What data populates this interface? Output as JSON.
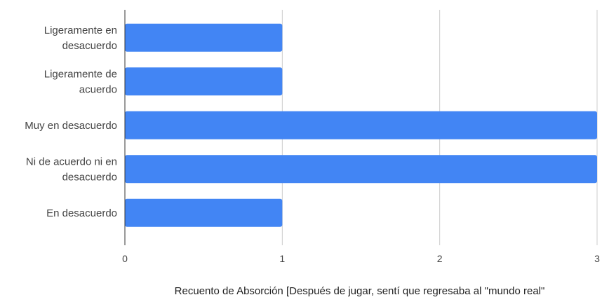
{
  "chart_data": {
    "type": "bar",
    "orientation": "horizontal",
    "categories": [
      "Ligeramente en desacuerdo",
      "Ligeramente de acuerdo",
      "Muy en desacuerdo",
      "Ni de acuerdo ni en desacuerdo",
      "En desacuerdo"
    ],
    "values": [
      1,
      1,
      3,
      3,
      1
    ],
    "xlabel": "Recuento de Absorción [Después de jugar, sentí que regresaba al \"mundo real\"",
    "xlim": [
      0,
      3
    ],
    "xticks": [
      "0",
      "1",
      "2",
      "3"
    ],
    "grid": true,
    "legend": "none",
    "colors": {
      "bar": "#4285f4",
      "grid": "#cccccc",
      "axis": "#333333"
    }
  }
}
